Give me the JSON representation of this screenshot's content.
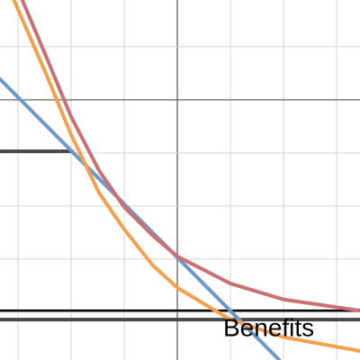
{
  "chart_data": {
    "type": "line",
    "xlim": [
      -3.34,
      3.44
    ],
    "ylim": [
      -4.9,
      1.88
    ],
    "xticks": [
      -3,
      -2,
      -1,
      0,
      1,
      2,
      3
    ],
    "yticks": [
      1,
      0,
      -1,
      -2,
      -3,
      -4
    ],
    "grid": true,
    "annotation": "Benefits",
    "series": [
      {
        "color": "#474747",
        "x": [
          -3.34,
          -1.98
        ],
        "values": [
          -0.97,
          -0.97
        ]
      },
      {
        "color": "#000000",
        "x": [
          -3.34,
          3.44
        ],
        "values": [
          -3.97,
          -3.97
        ]
      },
      {
        "color": "#474747",
        "x": [
          -3.34,
          3.44
        ],
        "values": [
          -4.14,
          -4.14
        ]
      },
      {
        "color": "#6b97c9",
        "x": [
          -3.34,
          1.92
        ],
        "values": [
          0.39,
          -4.9
        ]
      },
      {
        "color": "#f5a04e",
        "x": [
          -3.08,
          -2.49,
          -2.0,
          -1.47,
          -1.0,
          -0.46,
          0,
          1,
          2,
          3.44
        ],
        "values": [
          1.88,
          0.53,
          -0.66,
          -1.76,
          -2.44,
          -3.12,
          -3.54,
          -4.14,
          -4.47,
          -4.73
        ]
      },
      {
        "color": "#cc6f73",
        "x": [
          -2.92,
          -2.49,
          -2.0,
          -1.47,
          -1.0,
          -0.46,
          0,
          1,
          2,
          3.44
        ],
        "values": [
          1.88,
          0.86,
          -0.32,
          -1.34,
          -2.02,
          -2.56,
          -2.95,
          -3.46,
          -3.76,
          -3.97
        ]
      }
    ]
  }
}
